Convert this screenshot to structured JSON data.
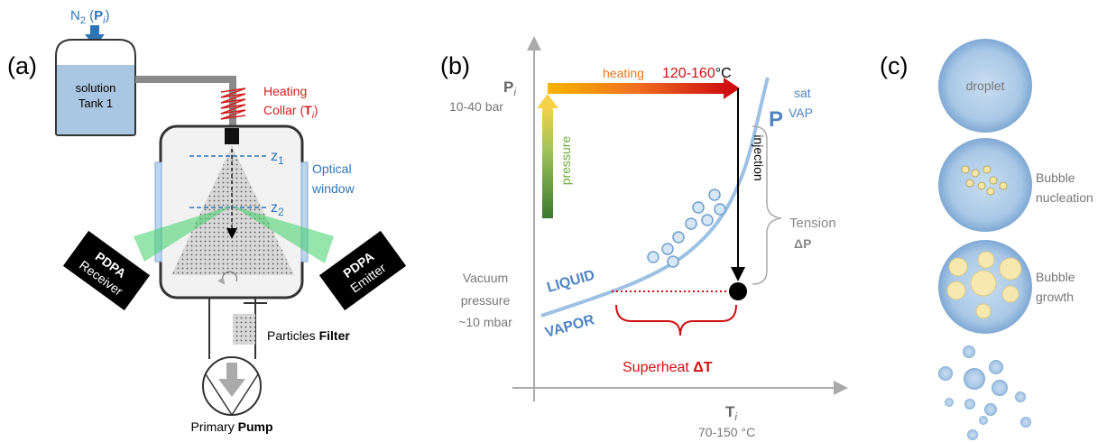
{
  "panel_a": {
    "label": "(a)",
    "gas": [
      "N",
      "2",
      " (",
      "P",
      "i",
      ")"
    ],
    "tank": [
      "solution",
      "Tank 1"
    ],
    "heating": [
      "Heating",
      "Collar (",
      "T",
      "i",
      ")"
    ],
    "z1": [
      "z",
      "1"
    ],
    "z2": [
      "z",
      "2"
    ],
    "window": [
      "Optical",
      "window"
    ],
    "receiver": [
      "PDPA",
      "Receiver"
    ],
    "emitter": [
      "PDPA",
      "Emitter"
    ],
    "filter": [
      "Particles ",
      "Filter"
    ],
    "pump": [
      "Primary ",
      "Pump"
    ]
  },
  "panel_b": {
    "label": "(b)",
    "p_axis": [
      "P",
      "i"
    ],
    "p_range": "10-40 bar",
    "heating": "heating",
    "temp": [
      "120-160",
      "°C"
    ],
    "pressure": "pressure",
    "psat": [
      "P",
      "sat",
      "VAP"
    ],
    "injection": "injection",
    "tension": [
      "Tension",
      "ΔP"
    ],
    "liquid": "LIQUID",
    "vapor": "VAPOR",
    "vacuum": [
      "Vacuum",
      "pressure",
      "~10 mbar"
    ],
    "superheat": [
      "Superheat ",
      "ΔT"
    ],
    "t_axis": [
      "T",
      "i"
    ],
    "t_range": "70-150 °C"
  },
  "panel_c": {
    "label": "(c)",
    "droplet": "droplet",
    "nucleation": [
      "Bubble",
      "nucleation"
    ],
    "growth": [
      "Bubble",
      "growth"
    ]
  }
}
